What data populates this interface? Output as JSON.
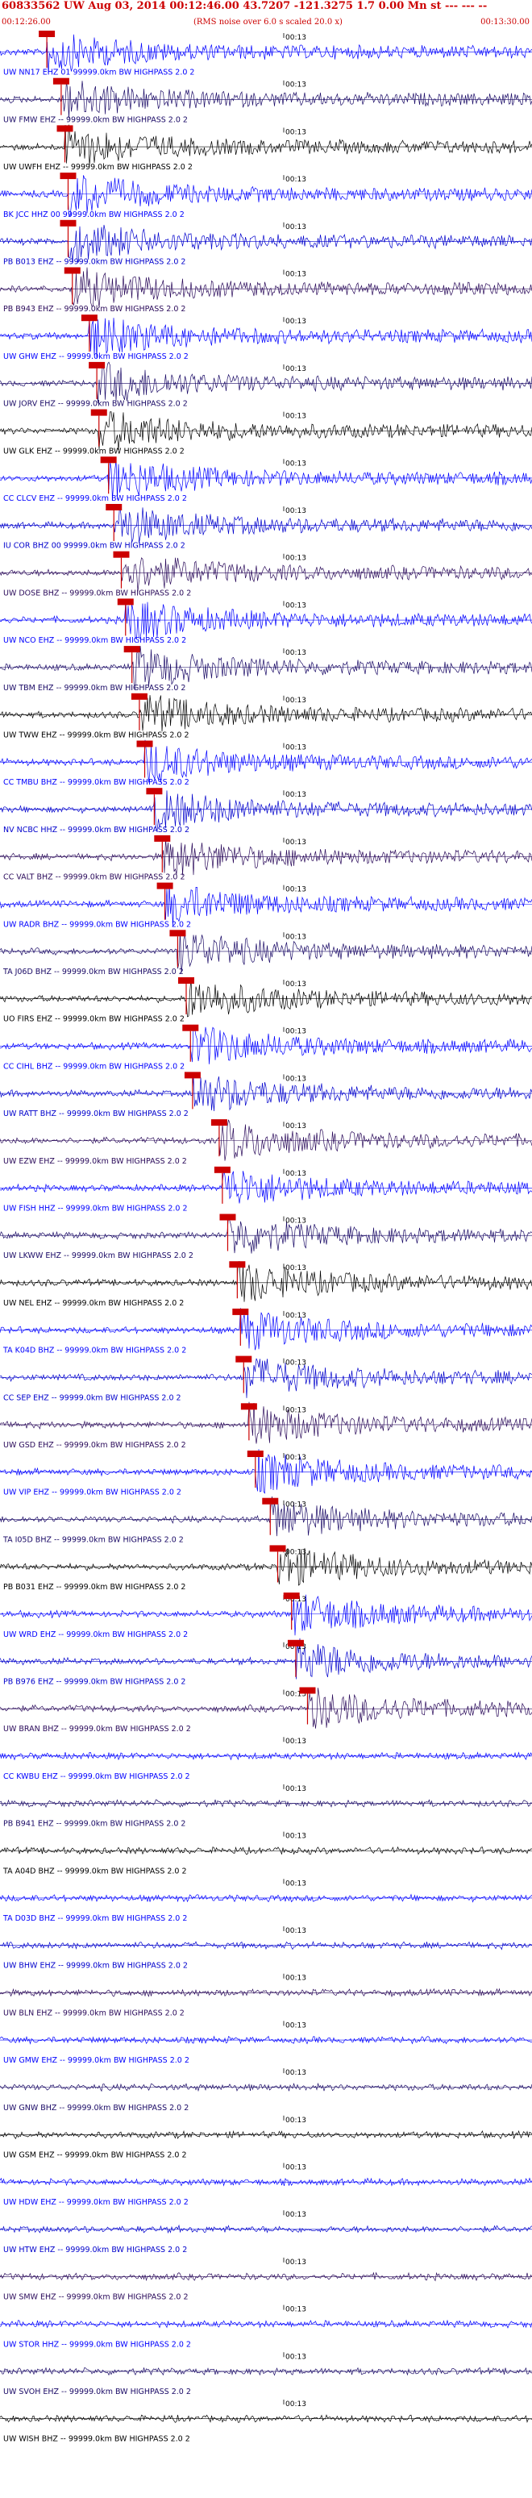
{
  "header": {
    "title_line": "60833562 UW Aug 03, 2014 00:12:46.00   43.7207 -121.3275  1.7 0.00 Mn st --- --- --",
    "start_time": "00:12:26.00",
    "scale_note": "(RMS noise over 6.0 s scaled 20.0 x)",
    "end_time": "00:13:30.00"
  },
  "chart_data": {
    "type": "line",
    "title": "60833562 UW Aug 03, 2014 00:12:46.00   43.7207 -121.3275  1.7 0.00 Mn st --- --- --",
    "x_range": [
      "00:12:26.00",
      "00:13:30.00"
    ],
    "x_tick_labels": [
      "00:13"
    ],
    "series": [
      {
        "name": "UW NN17 EHZ 01 99999.0km BW  HIGHPASS  2.0  2",
        "pick": 0.088
      },
      {
        "name": "UW FMW EHZ -- 99999.0km BW  HIGHPASS  2.0  2",
        "pick": 0.115
      },
      {
        "name": "UW UWFH EHZ -- 99999.0km BW  HIGHPASS  2.0  2",
        "pick": 0.122
      },
      {
        "name": "BK JCC HHZ 00 99999.0km BW  HIGHPASS  2.0  2",
        "pick": 0.128
      },
      {
        "name": "PB B013 EHZ -- 99999.0km BW  HIGHPASS  2.0  2",
        "pick": 0.128
      },
      {
        "name": "PB B943 EHZ -- 99999.0km BW  HIGHPASS  2.0  2",
        "pick": 0.136
      },
      {
        "name": "UW GHW EHZ -- 99999.0km BW  HIGHPASS  2.0  2",
        "pick": 0.168
      },
      {
        "name": "UW JORV EHZ -- 99999.0km BW  HIGHPASS  2.0  2",
        "pick": 0.182
      },
      {
        "name": "UW GLK EHZ -- 99999.0km BW  HIGHPASS  2.0  2",
        "pick": 0.186
      },
      {
        "name": "CC CLCV EHZ -- 99999.0km BW  HIGHPASS  2.0  2",
        "pick": 0.204
      },
      {
        "name": "IU COR BHZ 00 99999.0km BW  HIGHPASS  2.0  2",
        "pick": 0.214
      },
      {
        "name": "UW DOSE BHZ -- 99999.0km BW  HIGHPASS  2.0  2",
        "pick": 0.228
      },
      {
        "name": "UW NCO EHZ -- 99999.0km BW  HIGHPASS  2.0  2",
        "pick": 0.236
      },
      {
        "name": "UW TBM EHZ -- 99999.0km BW  HIGHPASS  2.0  2",
        "pick": 0.248
      },
      {
        "name": "UW TWW EHZ -- 99999.0km BW  HIGHPASS  2.0  2",
        "pick": 0.262
      },
      {
        "name": "CC TMBU BHZ -- 99999.0km BW  HIGHPASS  2.0  2",
        "pick": 0.272
      },
      {
        "name": "NV NCBC HHZ -- 99999.0km BW  HIGHPASS  2.0  2",
        "pick": 0.29
      },
      {
        "name": "CC VALT BHZ -- 99999.0km BW  HIGHPASS  2.0  2",
        "pick": 0.305
      },
      {
        "name": "UW RADR BHZ -- 99999.0km BW  HIGHPASS  2.0  2",
        "pick": 0.31
      },
      {
        "name": "TA J06D BHZ -- 99999.0km BW  HIGHPASS  2.0  2",
        "pick": 0.334
      },
      {
        "name": "UO FIRS EHZ -- 99999.0km BW  HIGHPASS  2.0  2",
        "pick": 0.35
      },
      {
        "name": "CC CIHL BHZ -- 99999.0km BW  HIGHPASS  2.0  2",
        "pick": 0.358
      },
      {
        "name": "UW RATT BHZ -- 99999.0km BW  HIGHPASS  2.0  2",
        "pick": 0.362
      },
      {
        "name": "UW EZW EHZ -- 99999.0km BW  HIGHPASS  2.0  2",
        "pick": 0.412
      },
      {
        "name": "UW FISH HHZ -- 99999.0km BW  HIGHPASS  2.0  2",
        "pick": 0.418
      },
      {
        "name": "UW LKWW EHZ -- 99999.0km BW  HIGHPASS  2.0  2",
        "pick": 0.428
      },
      {
        "name": "UW NEL EHZ -- 99999.0km BW  HIGHPASS  2.0  2",
        "pick": 0.446
      },
      {
        "name": "TA K04D BHZ -- 99999.0km BW  HIGHPASS  2.0  2",
        "pick": 0.452
      },
      {
        "name": "CC SEP EHZ -- 99999.0km BW  HIGHPASS  2.0  2",
        "pick": 0.458
      },
      {
        "name": "UW GSD EHZ -- 99999.0km BW  HIGHPASS  2.0  2",
        "pick": 0.468
      },
      {
        "name": "UW VIP EHZ -- 99999.0km BW  HIGHPASS  2.0  2",
        "pick": 0.48
      },
      {
        "name": "TA I05D BHZ -- 99999.0km BW  HIGHPASS  2.0  2",
        "pick": 0.508
      },
      {
        "name": "PB B031 EHZ -- 99999.0km BW  HIGHPASS  2.0  2",
        "pick": 0.522
      },
      {
        "name": "UW WRD EHZ -- 99999.0km BW  HIGHPASS  2.0  2",
        "pick": 0.548
      },
      {
        "name": "PB B976 EHZ -- 99999.0km BW  HIGHPASS  2.0  2",
        "pick": 0.556
      },
      {
        "name": "UW BRAN BHZ -- 99999.0km BW  HIGHPASS  2.0  2",
        "pick": 0.578
      },
      {
        "name": "CC KWBU EHZ -- 99999.0km BW  HIGHPASS  2.0  2",
        "pick": null
      },
      {
        "name": "PB B941 EHZ -- 99999.0km BW  HIGHPASS  2.0  2",
        "pick": null
      },
      {
        "name": "TA A04D BHZ -- 99999.0km BW  HIGHPASS  2.0  2",
        "pick": null
      },
      {
        "name": "TA D03D BHZ -- 99999.0km BW  HIGHPASS  2.0  2",
        "pick": null
      },
      {
        "name": "UW BHW EHZ -- 99999.0km BW  HIGHPASS  2.0  2",
        "pick": null
      },
      {
        "name": "UW BLN EHZ -- 99999.0km BW  HIGHPASS  2.0  2",
        "pick": null
      },
      {
        "name": "UW GMW EHZ -- 99999.0km BW  HIGHPASS  2.0  2",
        "pick": null
      },
      {
        "name": "UW GNW BHZ -- 99999.0km BW  HIGHPASS  2.0  2",
        "pick": null
      },
      {
        "name": "UW GSM EHZ -- 99999.0km BW  HIGHPASS  2.0  2",
        "pick": null
      },
      {
        "name": "UW HDW EHZ -- 99999.0km BW  HIGHPASS  2.0  2",
        "pick": null
      },
      {
        "name": "UW HTW EHZ -- 99999.0km BW  HIGHPASS  2.0  2",
        "pick": null
      },
      {
        "name": "UW SMW EHZ -- 99999.0km BW  HIGHPASS  2.0  2",
        "pick": null
      },
      {
        "name": "UW STOR HHZ -- 99999.0km BW  HIGHPASS  2.0  2",
        "pick": null
      },
      {
        "name": "UW SVOH EHZ -- 99999.0km BW  HIGHPASS  2.0  2",
        "pick": null
      },
      {
        "name": "UW WISH BHZ -- 99999.0km BW  HIGHPASS  2.0  2",
        "pick": null
      }
    ]
  },
  "colors": {
    "header": "#cc0000",
    "pick_marker": "#cc0000",
    "trace_palette": [
      "#0000ff",
      "#1a0a66",
      "#000000",
      "#0000ff",
      "#0000cc",
      "#2a0a5a"
    ]
  }
}
